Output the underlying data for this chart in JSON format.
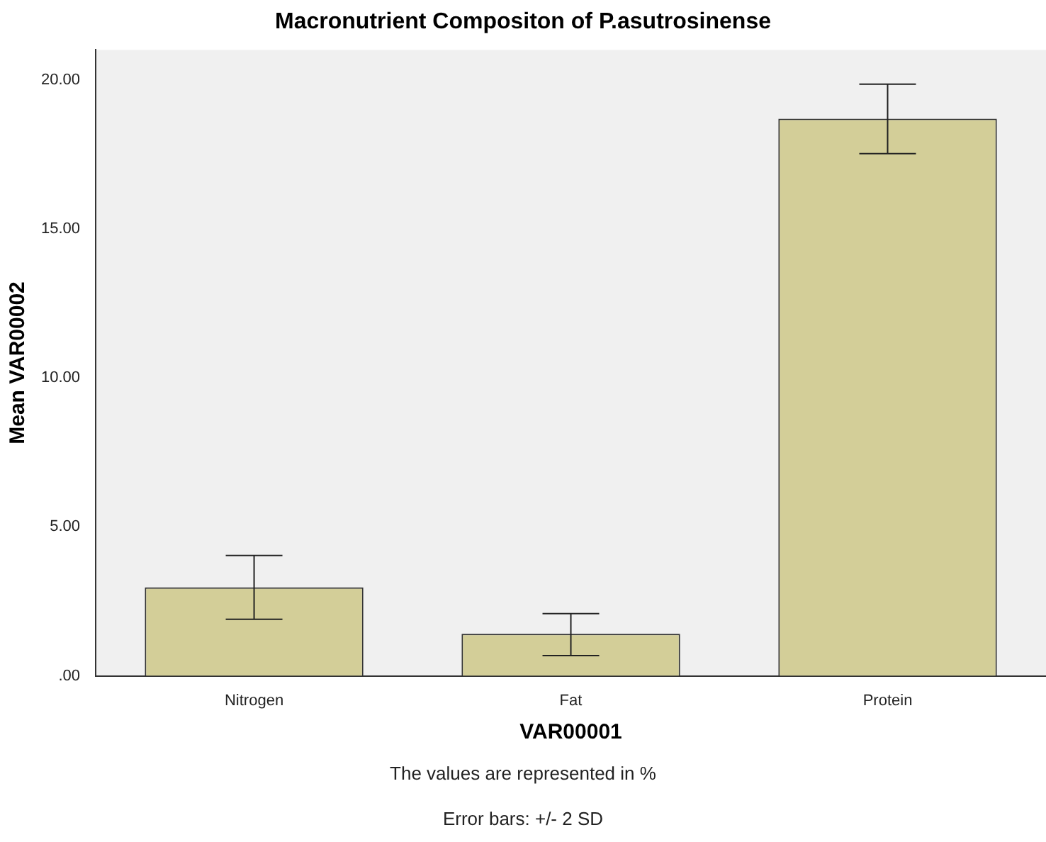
{
  "chart_data": {
    "type": "bar",
    "title": "Macronutrient Compositon of P.asutrosinense",
    "xlabel": "VAR00001",
    "ylabel": "Mean VAR00002",
    "categories": [
      "Nitrogen",
      "Fat",
      "Protein"
    ],
    "values": [
      2.97,
      1.41,
      18.69
    ],
    "errors": [
      [
        1.9,
        4.04
      ],
      [
        0.68,
        2.09
      ],
      [
        17.52,
        19.85
      ]
    ],
    "color": "#d3ce98",
    "ylim": [
      0,
      21
    ],
    "yticks": [
      {
        "value": 0,
        "label": ".00"
      },
      {
        "value": 5,
        "label": "5.00"
      },
      {
        "value": 10,
        "label": "10.00"
      },
      {
        "value": 15,
        "label": "15.00"
      },
      {
        "value": 20,
        "label": "20.00"
      }
    ],
    "grid": false,
    "legend": false,
    "annotations": [
      "The values are represented in %",
      "Error bars: +/- 2 SD"
    ]
  }
}
